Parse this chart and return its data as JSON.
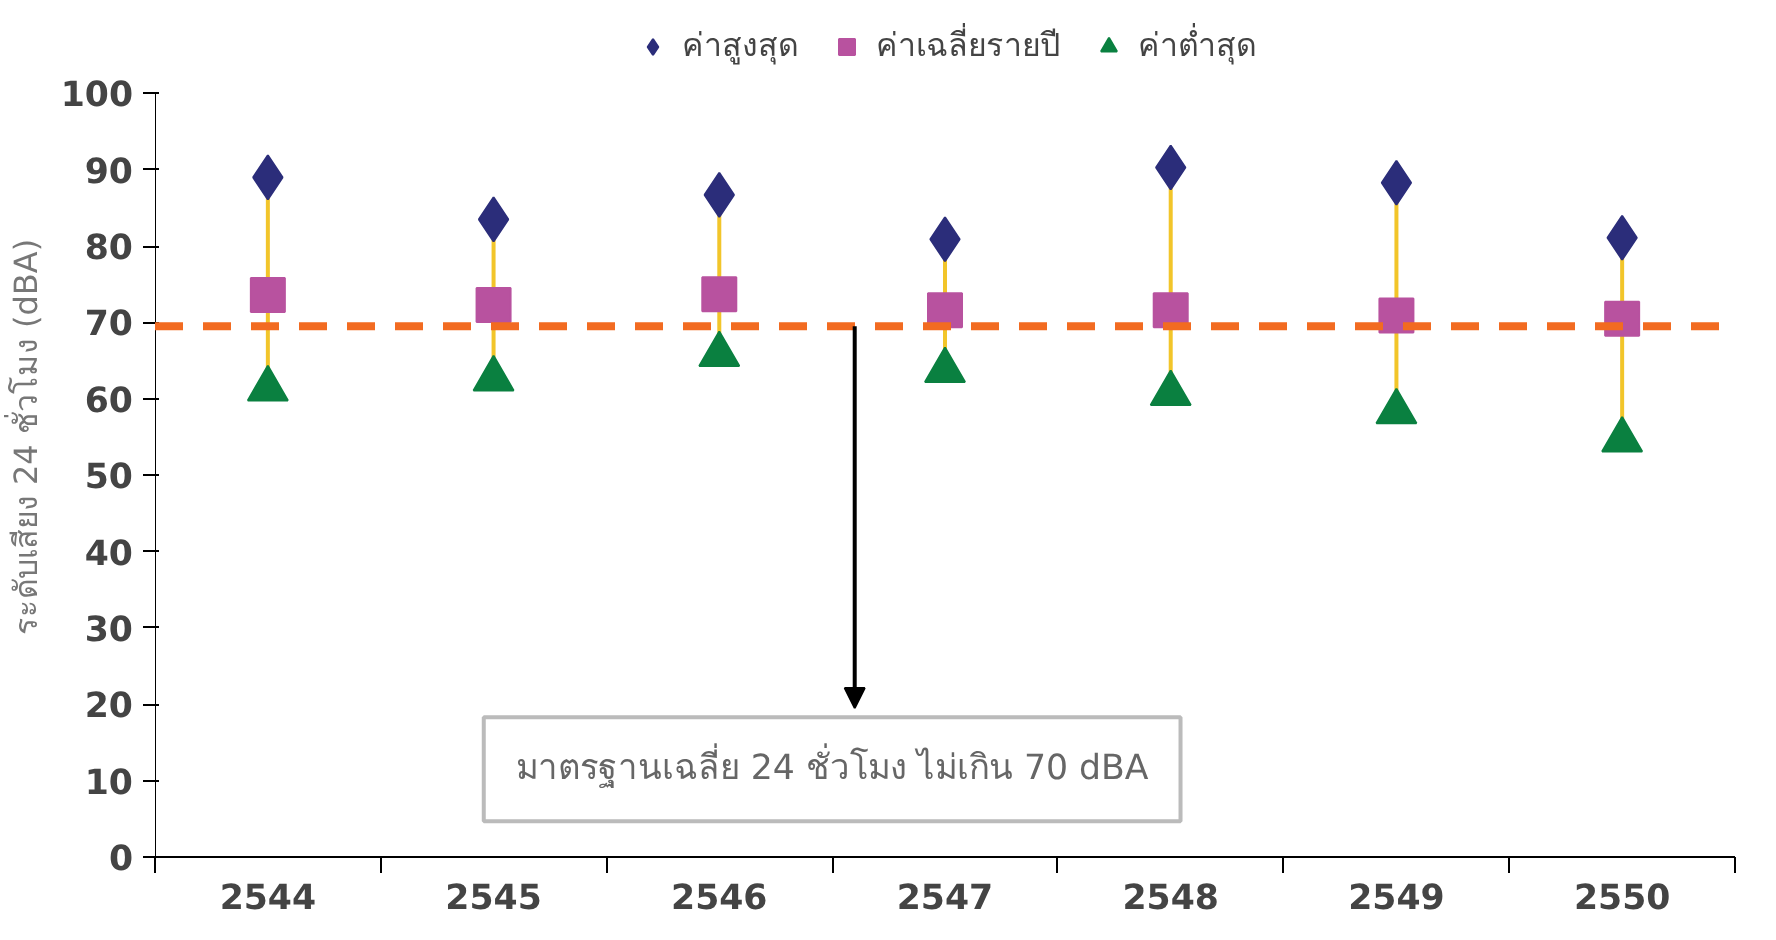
{
  "chart_data": {
    "type": "scatter",
    "categories": [
      "2544",
      "2545",
      "2546",
      "2547",
      "2548",
      "2549",
      "2550"
    ],
    "ylabel": "ระดับเสียง 24 ชั่วโมง (dBA)",
    "ylim": [
      0,
      100
    ],
    "yticks": [
      0,
      10,
      20,
      30,
      40,
      50,
      60,
      70,
      80,
      90,
      100
    ],
    "grid": false,
    "legend": "top",
    "series": [
      {
        "name": "ค่าสูงสุด",
        "color": "#2b2d7a",
        "marker": "diamond",
        "values": [
          89,
          83.5,
          86.7,
          80.9,
          90.3,
          88.3,
          81.1
        ]
      },
      {
        "name": "ค่าเฉลี่ยรายปี",
        "color": "#b8529f",
        "marker": "square",
        "values": [
          73.6,
          72.3,
          73.7,
          71.6,
          71.6,
          70.9,
          70.5
        ]
      },
      {
        "name": "ค่าต่ำสุด",
        "color": "#0a8040",
        "marker": "triangle",
        "values": [
          61.3,
          62.6,
          65.8,
          63.7,
          60.7,
          58.3,
          54.6
        ]
      }
    ],
    "ref_lines": [
      {
        "axis": "y",
        "value": 69.5,
        "color": "#f26b21",
        "line_style": "dashed"
      }
    ],
    "annotations": [
      "มาตรฐานเฉลี่ย 24 ชั่วโมง ไม่เกิน 70 dBA"
    ]
  }
}
